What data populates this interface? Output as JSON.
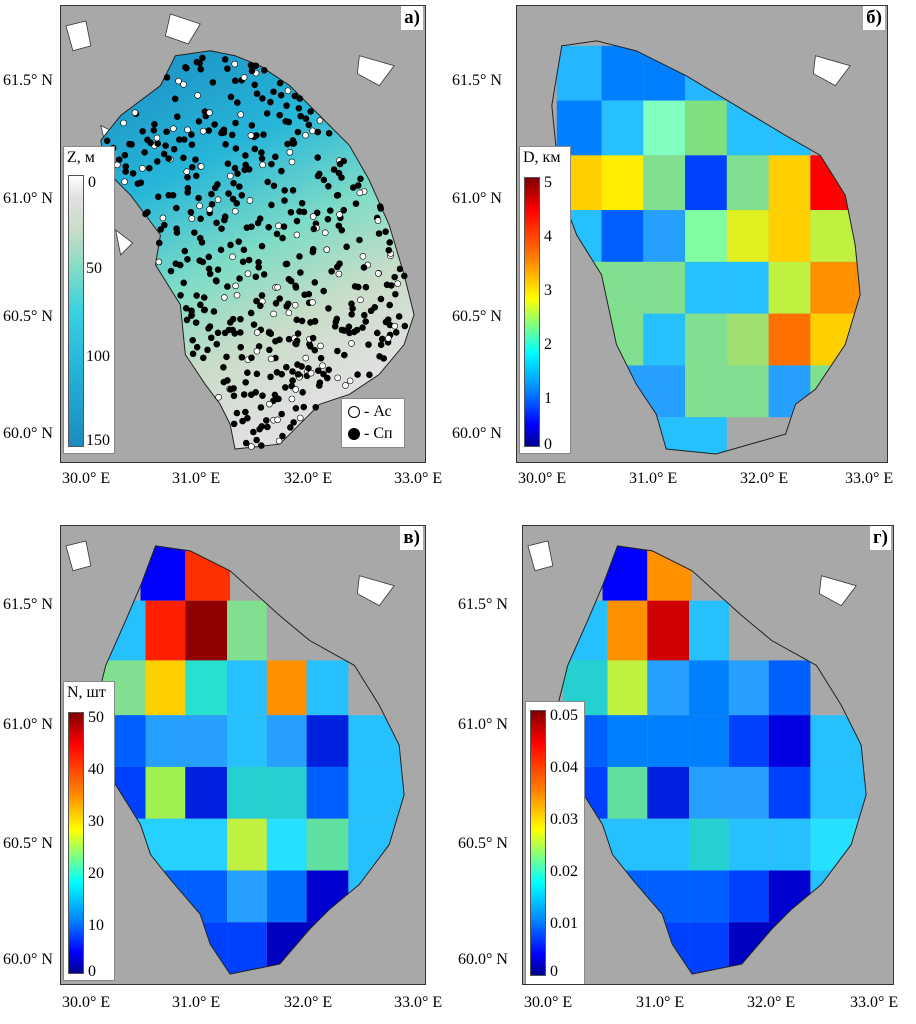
{
  "lat_labels": [
    "61.5° N",
    "61.0° N",
    "60.5° N",
    "60.0° N"
  ],
  "lon_labels": [
    "30.0° E",
    "31.0° E",
    "32.0° E",
    "33.0° E"
  ],
  "panels": {
    "a": {
      "letter": "а)",
      "colorbar": {
        "title": "Z, м",
        "ticks": [
          "0",
          "50",
          "100",
          "150"
        ],
        "range": [
          0,
          150
        ]
      },
      "legend": {
        "open": "- Ас",
        "filled": "- Сп"
      }
    },
    "b": {
      "letter": "б)",
      "colorbar": {
        "title": "D, км",
        "ticks": [
          "5",
          "4",
          "3",
          "2",
          "1",
          "0"
        ],
        "range": [
          0,
          5
        ]
      }
    },
    "c": {
      "letter": "в)",
      "colorbar": {
        "title": "N, шт",
        "ticks": [
          "50",
          "40",
          "30",
          "20",
          "10",
          "0"
        ],
        "range": [
          0,
          50
        ]
      }
    },
    "d": {
      "letter": "г)",
      "colorbar": {
        "title": "",
        "ticks": [
          "0.05",
          "0.04",
          "0.03",
          "0.02",
          "0.01",
          "0"
        ],
        "range": [
          0,
          0.05
        ]
      }
    }
  },
  "colors": {
    "background": "#a8a8a8",
    "land": "#ffffff",
    "depth_scale": [
      "#e6e6e6",
      "#c9ddc8",
      "#7fdcc6",
      "#3ad1e0",
      "#26b6d9",
      "#1b8bc0"
    ],
    "jet_scale": [
      "#00008f",
      "#0000ff",
      "#0080ff",
      "#00ffff",
      "#80ff80",
      "#ffff00",
      "#ff8000",
      "#ff0000",
      "#800000"
    ]
  }
}
